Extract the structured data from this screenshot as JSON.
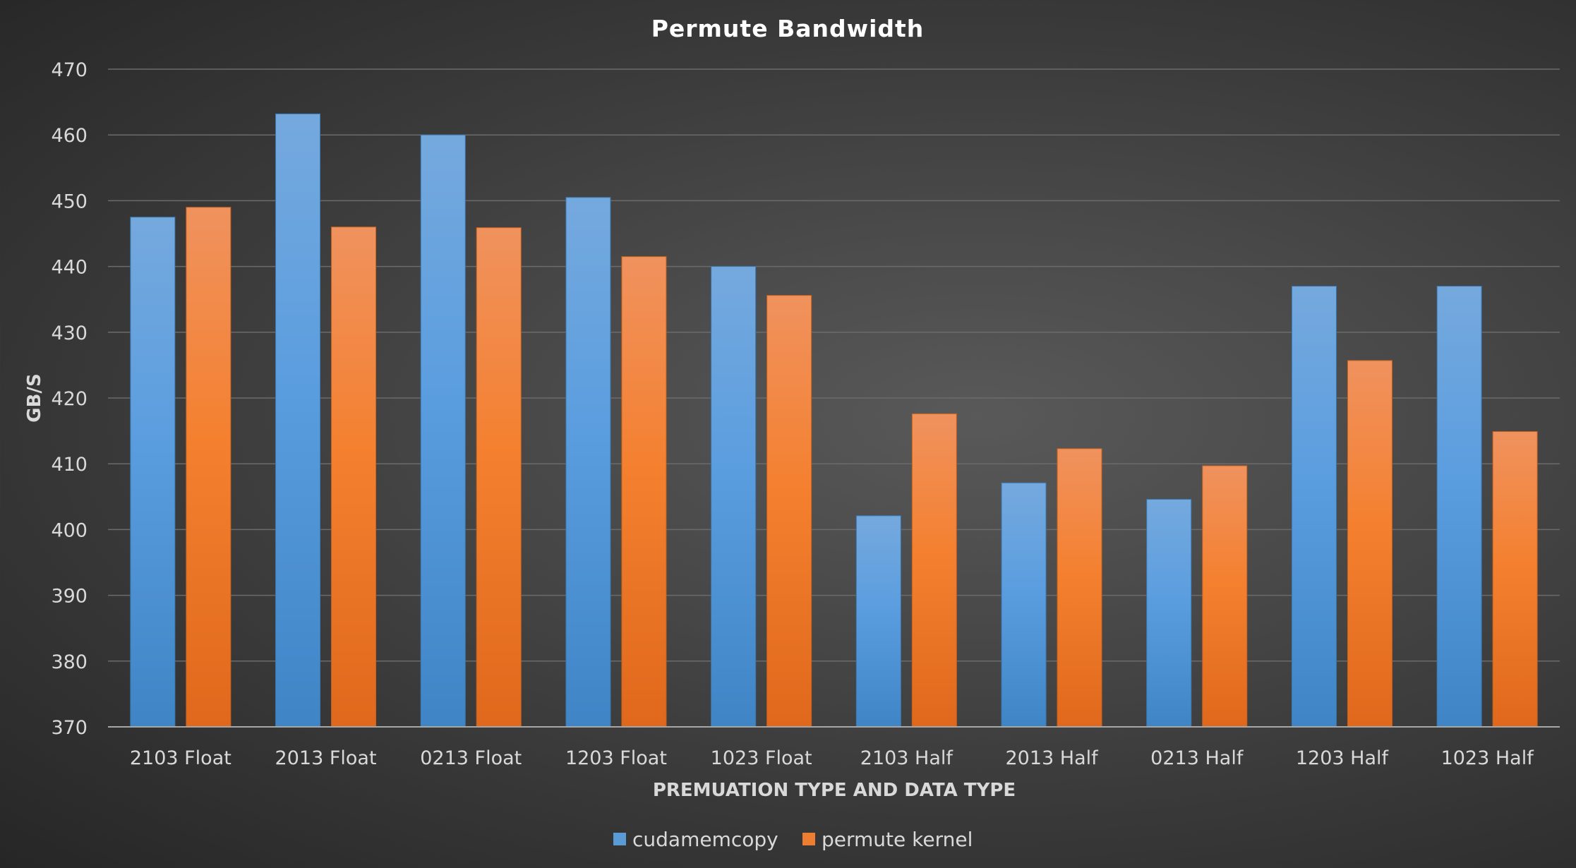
{
  "chart_data": {
    "type": "bar",
    "title": "Permute Bandwidth",
    "xlabel": "PREMUATION TYPE AND DATA TYPE",
    "ylabel": "GB/S",
    "ylim": [
      370,
      470
    ],
    "yticks": [
      370,
      380,
      390,
      400,
      410,
      420,
      430,
      440,
      450,
      460,
      470
    ],
    "grid": true,
    "legend_position": "bottom",
    "categories": [
      "2103 Float",
      "2013 Float",
      "0213 Float",
      "1203 Float",
      "1023 Float",
      "2103 Half",
      "2013 Half",
      "0213 Half",
      "1203 Half",
      "1023 Half"
    ],
    "series": [
      {
        "name": "cudamemcopy",
        "color": "#5b9bd5",
        "values": [
          447.5,
          463.2,
          460.0,
          450.5,
          440.0,
          402.1,
          407.1,
          404.6,
          437.0,
          437.0
        ]
      },
      {
        "name": "permute kernel",
        "color": "#ed7d31",
        "values": [
          449.0,
          446.0,
          445.9,
          441.5,
          435.6,
          417.6,
          412.3,
          409.7,
          425.7,
          414.9
        ]
      }
    ]
  }
}
